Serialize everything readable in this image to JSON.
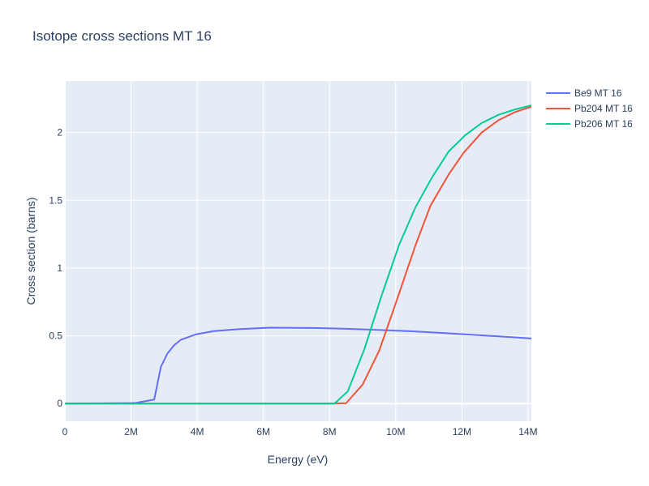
{
  "chart_data": {
    "type": "line",
    "title": "Isotope cross sections MT 16",
    "xlabel": "Energy (eV)",
    "ylabel": "Cross section (barns)",
    "xlim": [
      0,
      14100000
    ],
    "ylim": [
      -0.13,
      2.38
    ],
    "x_ticks": [
      0,
      2000000,
      4000000,
      6000000,
      8000000,
      10000000,
      12000000,
      14000000
    ],
    "x_tick_labels": [
      "0",
      "2M",
      "4M",
      "6M",
      "8M",
      "10M",
      "12M",
      "14M"
    ],
    "y_ticks": [
      0,
      0.5,
      1,
      1.5,
      2
    ],
    "y_tick_labels": [
      "0",
      "0.5",
      "1",
      "1.5",
      "2"
    ],
    "grid": true,
    "legend_position": "top-right",
    "series": [
      {
        "name": "Be9 MT 16",
        "color": "#636efa",
        "x": [
          0,
          1000000,
          2000000,
          2150000,
          2700000,
          2900000,
          3100000,
          3300000,
          3500000,
          3950000,
          4500000,
          5300000,
          6200000,
          7500000,
          8500000,
          9500000,
          10500000,
          11500000,
          12500000,
          13500000,
          14100000
        ],
        "y": [
          0,
          0.002,
          0.004,
          0.005,
          0.03,
          0.27,
          0.37,
          0.43,
          0.47,
          0.51,
          0.535,
          0.55,
          0.56,
          0.558,
          0.552,
          0.543,
          0.533,
          0.52,
          0.505,
          0.49,
          0.48
        ]
      },
      {
        "name": "Pb204 MT 16",
        "color": "#ef553b",
        "x": [
          0,
          8000000,
          8500000,
          9000000,
          9500000,
          10000000,
          10600000,
          11050000,
          11600000,
          12050000,
          12600000,
          13100000,
          13600000,
          14100000
        ],
        "y": [
          0,
          0,
          0.003,
          0.14,
          0.39,
          0.74,
          1.17,
          1.46,
          1.69,
          1.85,
          2.0,
          2.09,
          2.15,
          2.19
        ]
      },
      {
        "name": "Pb206 MT 16",
        "color": "#00cc96",
        "x": [
          0,
          8150000,
          8550000,
          9050000,
          9550000,
          10100000,
          10600000,
          11100000,
          11600000,
          12100000,
          12600000,
          13100000,
          13600000,
          14100000
        ],
        "y": [
          0,
          0,
          0.09,
          0.4,
          0.78,
          1.17,
          1.45,
          1.67,
          1.86,
          1.98,
          2.07,
          2.13,
          2.17,
          2.2
        ]
      }
    ]
  }
}
